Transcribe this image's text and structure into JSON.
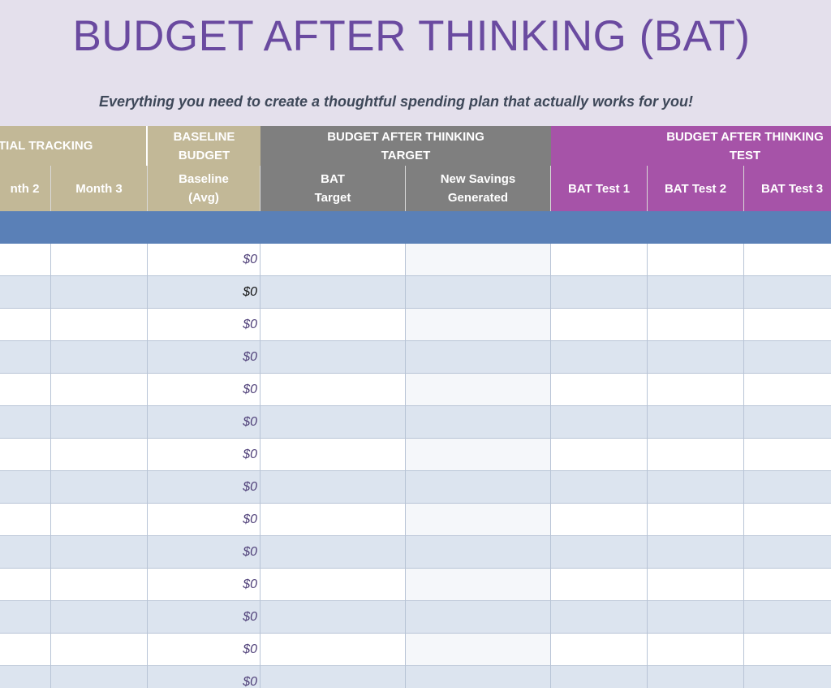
{
  "header": {
    "title": "BUDGET AFTER THINKING (BAT)",
    "subtitle": "Everything you need to create a thoughtful spending plan that actually works for you!"
  },
  "table": {
    "group_headers": [
      [
        "TIAL TRACKING"
      ],
      [
        "BASELINE",
        "BUDGET"
      ],
      [
        "BUDGET AFTER THINKING",
        "TARGET"
      ],
      [
        "BUDGET AFTER THINKING",
        "TEST"
      ]
    ],
    "column_headers": [
      [
        "nth 2"
      ],
      [
        "Month 3"
      ],
      [
        "Baseline",
        "(Avg)"
      ],
      [
        "BAT",
        "Target"
      ],
      [
        "New Savings",
        "Generated"
      ],
      [
        "BAT Test 1"
      ],
      [
        "BAT Test 2"
      ],
      [
        "BAT Test 3"
      ]
    ],
    "baseline_values": [
      "$0",
      "$0",
      "$0",
      "$0",
      "$0",
      "$0",
      "$0",
      "$0",
      "$0",
      "$0",
      "$0",
      "$0",
      "$0",
      "$0"
    ]
  }
}
